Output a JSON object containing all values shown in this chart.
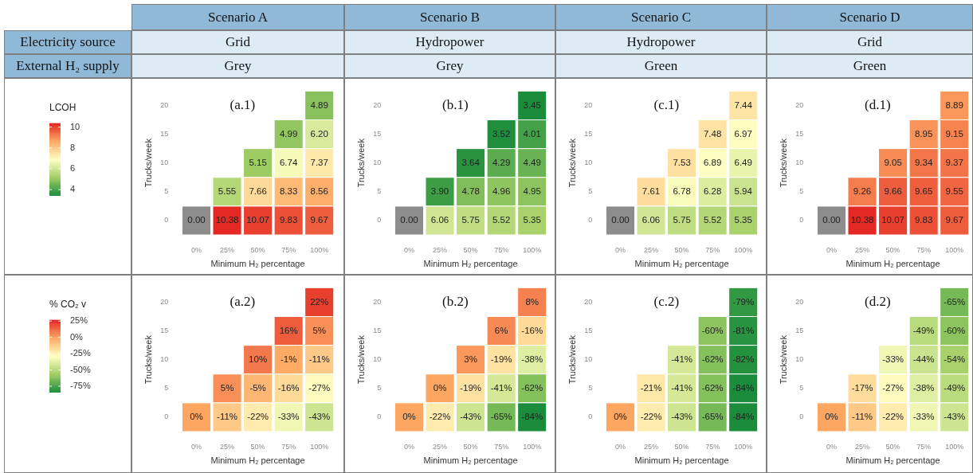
{
  "chart_data": [
    {
      "type": "other",
      "annotations": [
        "Scenario A",
        "Scenario B",
        "Scenario C",
        "Scenario D",
        "Electricity source",
        "Grid",
        "Hydropower",
        "Hydropower",
        "Grid",
        "External H₂ supply",
        "Grey",
        "Grey",
        "Green",
        "Green"
      ]
    },
    {
      "type": "heatmap",
      "title": "(a.1)",
      "xlabel": "Minimum H₂ percentage",
      "ylabel": "Trucks/week",
      "clabel": "LCOH",
      "clim": [
        3.45,
        10.38
      ],
      "cticks": [
        4,
        6,
        8,
        10
      ],
      "categories": [
        "0%",
        "25%",
        "50%",
        "75%",
        "100%"
      ],
      "y_categories": [
        "20",
        "15",
        "10",
        "5",
        "0"
      ],
      "cells": [
        [
          null,
          null,
          null,
          null,
          4.89
        ],
        [
          null,
          null,
          null,
          4.99,
          6.2
        ],
        [
          null,
          null,
          5.15,
          6.74,
          7.37
        ],
        [
          null,
          5.55,
          7.66,
          8.33,
          8.56
        ],
        [
          null,
          10.38,
          10.07,
          9.83,
          9.67
        ]
      ],
      "cell_labels": [
        [
          null,
          null,
          null,
          null,
          "4.89"
        ],
        [
          null,
          null,
          null,
          "4.99",
          "6.20"
        ],
        [
          null,
          null,
          "5.15",
          "6.74",
          "7.37"
        ],
        [
          null,
          "5.55",
          "7.66",
          "8.33",
          "8.56"
        ],
        [
          "0.00",
          "10.38",
          "10.07",
          "9.83",
          "9.67"
        ]
      ]
    },
    {
      "type": "heatmap",
      "title": "(b.1)",
      "xlabel": "Minimum H₂ percentage",
      "ylabel": "Trucks/week",
      "categories": [
        "0%",
        "25%",
        "50%",
        "75%",
        "100%"
      ],
      "y_categories": [
        "20",
        "15",
        "10",
        "5",
        "0"
      ],
      "cells": [
        [
          null,
          null,
          null,
          null,
          3.45
        ],
        [
          null,
          null,
          null,
          3.52,
          4.01
        ],
        [
          null,
          null,
          3.64,
          4.29,
          4.49
        ],
        [
          null,
          3.9,
          4.78,
          4.96,
          4.95
        ],
        [
          null,
          6.06,
          5.75,
          5.52,
          5.35
        ]
      ],
      "cell_labels": [
        [
          null,
          null,
          null,
          null,
          "3.45"
        ],
        [
          null,
          null,
          null,
          "3.52",
          "4.01"
        ],
        [
          null,
          null,
          "3.64",
          "4.29",
          "4.49"
        ],
        [
          null,
          "3.90",
          "4.78",
          "4.96",
          "4.95"
        ],
        [
          "0.00",
          "6.06",
          "5.75",
          "5.52",
          "5.35"
        ]
      ]
    },
    {
      "type": "heatmap",
      "title": "(c.1)",
      "xlabel": "Minimum H₂ percentage",
      "ylabel": "Trucks/week",
      "categories": [
        "0%",
        "25%",
        "50%",
        "75%",
        "100%"
      ],
      "y_categories": [
        "20",
        "15",
        "10",
        "5",
        "0"
      ],
      "cells": [
        [
          null,
          null,
          null,
          null,
          7.44
        ],
        [
          null,
          null,
          null,
          7.48,
          6.97
        ],
        [
          null,
          null,
          7.53,
          6.89,
          6.49
        ],
        [
          null,
          7.61,
          6.78,
          6.28,
          5.94
        ],
        [
          null,
          6.06,
          5.75,
          5.52,
          5.35
        ]
      ],
      "cell_labels": [
        [
          null,
          null,
          null,
          null,
          "7.44"
        ],
        [
          null,
          null,
          null,
          "7.48",
          "6.97"
        ],
        [
          null,
          null,
          "7.53",
          "6.89",
          "6.49"
        ],
        [
          null,
          "7.61",
          "6.78",
          "6.28",
          "5.94"
        ],
        [
          "0.00",
          "6.06",
          "5.75",
          "5.52",
          "5.35"
        ]
      ]
    },
    {
      "type": "heatmap",
      "title": "(d.1)",
      "xlabel": "Minimum H₂ percentage",
      "ylabel": "Trucks/week",
      "categories": [
        "0%",
        "25%",
        "50%",
        "75%",
        "100%"
      ],
      "y_categories": [
        "20",
        "15",
        "10",
        "5",
        "0"
      ],
      "cells": [
        [
          null,
          null,
          null,
          null,
          8.89
        ],
        [
          null,
          null,
          null,
          8.95,
          9.15
        ],
        [
          null,
          null,
          9.05,
          9.34,
          9.37
        ],
        [
          null,
          9.26,
          9.66,
          9.65,
          9.55
        ],
        [
          null,
          10.38,
          10.07,
          9.83,
          9.67
        ]
      ],
      "cell_labels": [
        [
          null,
          null,
          null,
          null,
          "8.89"
        ],
        [
          null,
          null,
          null,
          "8.95",
          "9.15"
        ],
        [
          null,
          null,
          "9.05",
          "9.34",
          "9.37"
        ],
        [
          null,
          "9.26",
          "9.66",
          "9.65",
          "9.55"
        ],
        [
          "0.00",
          "10.38",
          "10.07",
          "9.83",
          "9.67"
        ]
      ]
    },
    {
      "type": "heatmap",
      "title": "(a.2)",
      "xlabel": "Minimum H₂ percentage",
      "ylabel": "Trucks/week",
      "clabel": "% CO₂ v",
      "clim": [
        -84,
        27
      ],
      "cticks": [
        {
          "value": 25,
          "label": "25%"
        },
        {
          "value": 0,
          "label": "0%"
        },
        {
          "value": -25,
          "label": "-25%"
        },
        {
          "value": -50,
          "label": "-50%"
        },
        {
          "value": -75,
          "label": "-75%"
        }
      ],
      "categories": [
        "0%",
        "25%",
        "50%",
        "75%",
        "100%"
      ],
      "y_categories": [
        "20",
        "15",
        "10",
        "5",
        "0"
      ],
      "cells": [
        [
          null,
          null,
          null,
          null,
          22
        ],
        [
          null,
          null,
          null,
          16,
          5
        ],
        [
          null,
          null,
          10,
          -1,
          -11
        ],
        [
          null,
          5,
          -5,
          -16,
          -27
        ],
        [
          0,
          -11,
          -22,
          -33,
          -43
        ]
      ],
      "cell_labels": [
        [
          null,
          null,
          null,
          null,
          "22%"
        ],
        [
          null,
          null,
          null,
          "16%",
          "5%"
        ],
        [
          null,
          null,
          "10%",
          "-1%",
          "-11%"
        ],
        [
          null,
          "5%",
          "-5%",
          "-16%",
          "-27%"
        ],
        [
          "0%",
          "-11%",
          "-22%",
          "-33%",
          "-43%"
        ]
      ]
    },
    {
      "type": "heatmap",
      "title": "(b.2)",
      "xlabel": "Minimum H₂ percentage",
      "ylabel": "Trucks/week",
      "categories": [
        "0%",
        "25%",
        "50%",
        "75%",
        "100%"
      ],
      "y_categories": [
        "20",
        "15",
        "10",
        "5",
        "0"
      ],
      "cells": [
        [
          null,
          null,
          null,
          null,
          8
        ],
        [
          null,
          null,
          null,
          6,
          -16
        ],
        [
          null,
          null,
          3,
          -19,
          -38
        ],
        [
          null,
          0,
          -19,
          -41,
          -62
        ],
        [
          0,
          -22,
          -43,
          -65,
          -84
        ]
      ],
      "cell_labels": [
        [
          null,
          null,
          null,
          null,
          "8%"
        ],
        [
          null,
          null,
          null,
          "6%",
          "-16%"
        ],
        [
          null,
          null,
          "3%",
          "-19%",
          "-38%"
        ],
        [
          null,
          "0%",
          "-19%",
          "-41%",
          "-62%"
        ],
        [
          "0%",
          "-22%",
          "-43%",
          "-65%",
          "-84%"
        ]
      ]
    },
    {
      "type": "heatmap",
      "title": "(c.2)",
      "xlabel": "Minimum H₂ percentage",
      "ylabel": "Trucks/week",
      "categories": [
        "0%",
        "25%",
        "50%",
        "75%",
        "100%"
      ],
      "y_categories": [
        "20",
        "15",
        "10",
        "5",
        "0"
      ],
      "cells": [
        [
          null,
          null,
          null,
          null,
          -79
        ],
        [
          null,
          null,
          null,
          -60,
          -81
        ],
        [
          null,
          null,
          -41,
          -62,
          -82
        ],
        [
          null,
          -21,
          -41,
          -62,
          -84
        ],
        [
          0,
          -22,
          -43,
          -65,
          -84
        ]
      ],
      "cell_labels": [
        [
          null,
          null,
          null,
          null,
          "-79%"
        ],
        [
          null,
          null,
          null,
          "-60%",
          "-81%"
        ],
        [
          null,
          null,
          "-41%",
          "-62%",
          "-82%"
        ],
        [
          null,
          "-21%",
          "-41%",
          "-62%",
          "-84%"
        ],
        [
          "0%",
          "-22%",
          "-43%",
          "-65%",
          "-84%"
        ]
      ]
    },
    {
      "type": "heatmap",
      "title": "(d.2)",
      "xlabel": "Minimum H₂ percentage",
      "ylabel": "Trucks/week",
      "categories": [
        "0%",
        "25%",
        "50%",
        "75%",
        "100%"
      ],
      "y_categories": [
        "20",
        "15",
        "10",
        "5",
        "0"
      ],
      "cells": [
        [
          null,
          null,
          null,
          null,
          -65
        ],
        [
          null,
          null,
          null,
          -49,
          -60
        ],
        [
          null,
          null,
          -33,
          -44,
          -54
        ],
        [
          null,
          -17,
          -27,
          -38,
          -49
        ],
        [
          0,
          -11,
          -22,
          -33,
          -43
        ]
      ],
      "cell_labels": [
        [
          null,
          null,
          null,
          null,
          "-65%"
        ],
        [
          null,
          null,
          null,
          "-49%",
          "-60%"
        ],
        [
          null,
          null,
          "-33%",
          "-44%",
          "-54%"
        ],
        [
          null,
          "-17%",
          "-27%",
          "-38%",
          "-49%"
        ],
        [
          "0%",
          "-11%",
          "-22%",
          "-33%",
          "-43%"
        ]
      ]
    }
  ]
}
